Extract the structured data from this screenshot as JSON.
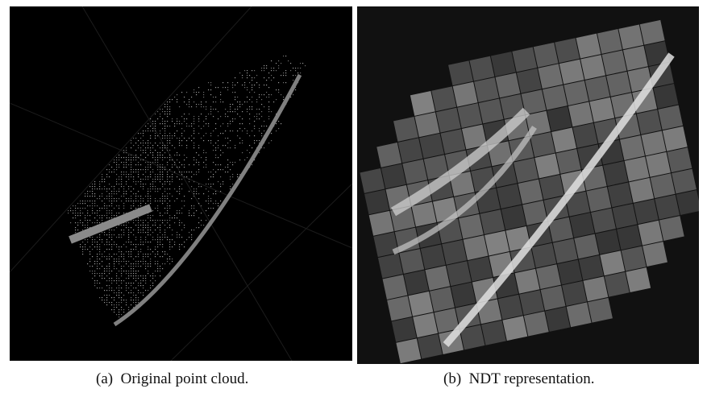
{
  "figures": [
    {
      "label": "(a)",
      "caption": "Original point cloud.",
      "background": "#000000"
    },
    {
      "label": "(b)",
      "caption": "NDT representation.",
      "background": "#111111"
    }
  ]
}
